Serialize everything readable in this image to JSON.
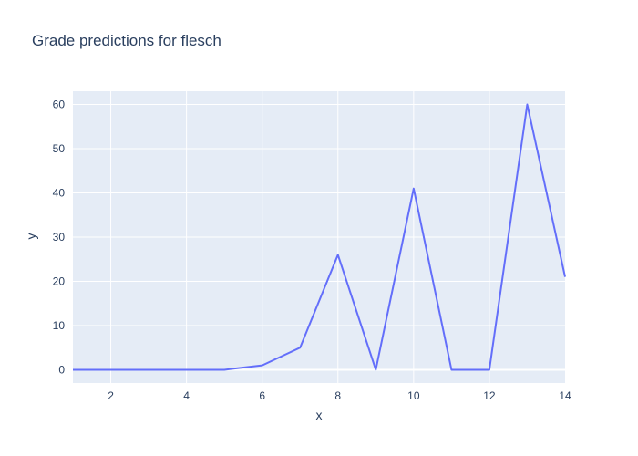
{
  "chart_data": {
    "type": "line",
    "title": "Grade predictions for flesch",
    "xlabel": "x",
    "ylabel": "y",
    "x": [
      1,
      2,
      3,
      4,
      5,
      6,
      7,
      8,
      9,
      10,
      11,
      12,
      13,
      14
    ],
    "series": [
      {
        "values": [
          0,
          0,
          0,
          0,
          0,
          1,
          5,
          26,
          0,
          41,
          0,
          0,
          60,
          21
        ]
      }
    ],
    "xlim": [
      1,
      14
    ],
    "ylim": [
      -3,
      63
    ],
    "xticks": [
      2,
      4,
      6,
      8,
      10,
      12,
      14
    ],
    "yticks": [
      0,
      10,
      20,
      30,
      40,
      50,
      60
    ],
    "grid": true,
    "colors": {
      "line": "#636efa",
      "plot_bg": "#e5ecf6",
      "grid": "#ffffff",
      "text": "#2a3f5f"
    }
  }
}
